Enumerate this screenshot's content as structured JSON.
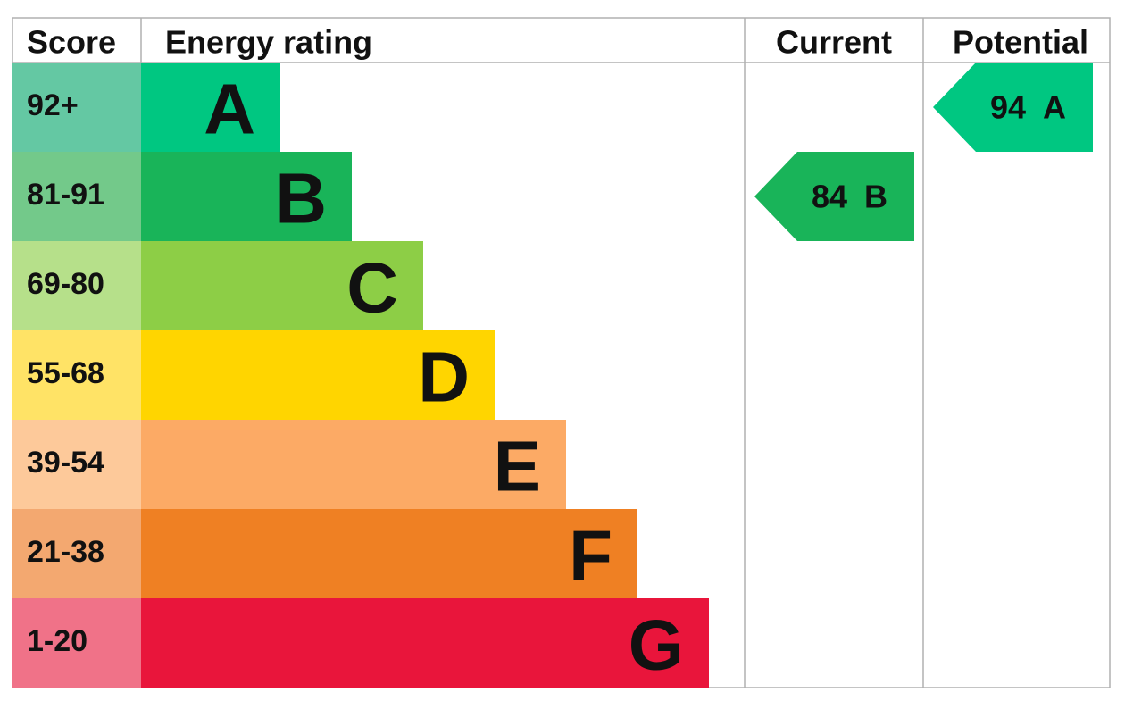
{
  "header": {
    "score": "Score",
    "rating": "Energy rating",
    "current": "Current",
    "potential": "Potential"
  },
  "bands": [
    {
      "score": "92+",
      "letter": "A",
      "color": "#00c781",
      "light": "#64c8a3"
    },
    {
      "score": "81-91",
      "letter": "B",
      "color": "#19b459",
      "light": "#73c98a"
    },
    {
      "score": "69-80",
      "letter": "C",
      "color": "#8dce46",
      "light": "#b6e08a"
    },
    {
      "score": "55-68",
      "letter": "D",
      "color": "#ffd500",
      "light": "#ffe366"
    },
    {
      "score": "39-54",
      "letter": "E",
      "color": "#fcaa65",
      "light": "#fdc99a"
    },
    {
      "score": "21-38",
      "letter": "F",
      "color": "#ef8023",
      "light": "#f3a870"
    },
    {
      "score": "1-20",
      "letter": "G",
      "color": "#e9153b",
      "light": "#f07288"
    }
  ],
  "current": {
    "value": 84,
    "rating": "B"
  },
  "potential": {
    "value": 94,
    "rating": "A"
  }
}
